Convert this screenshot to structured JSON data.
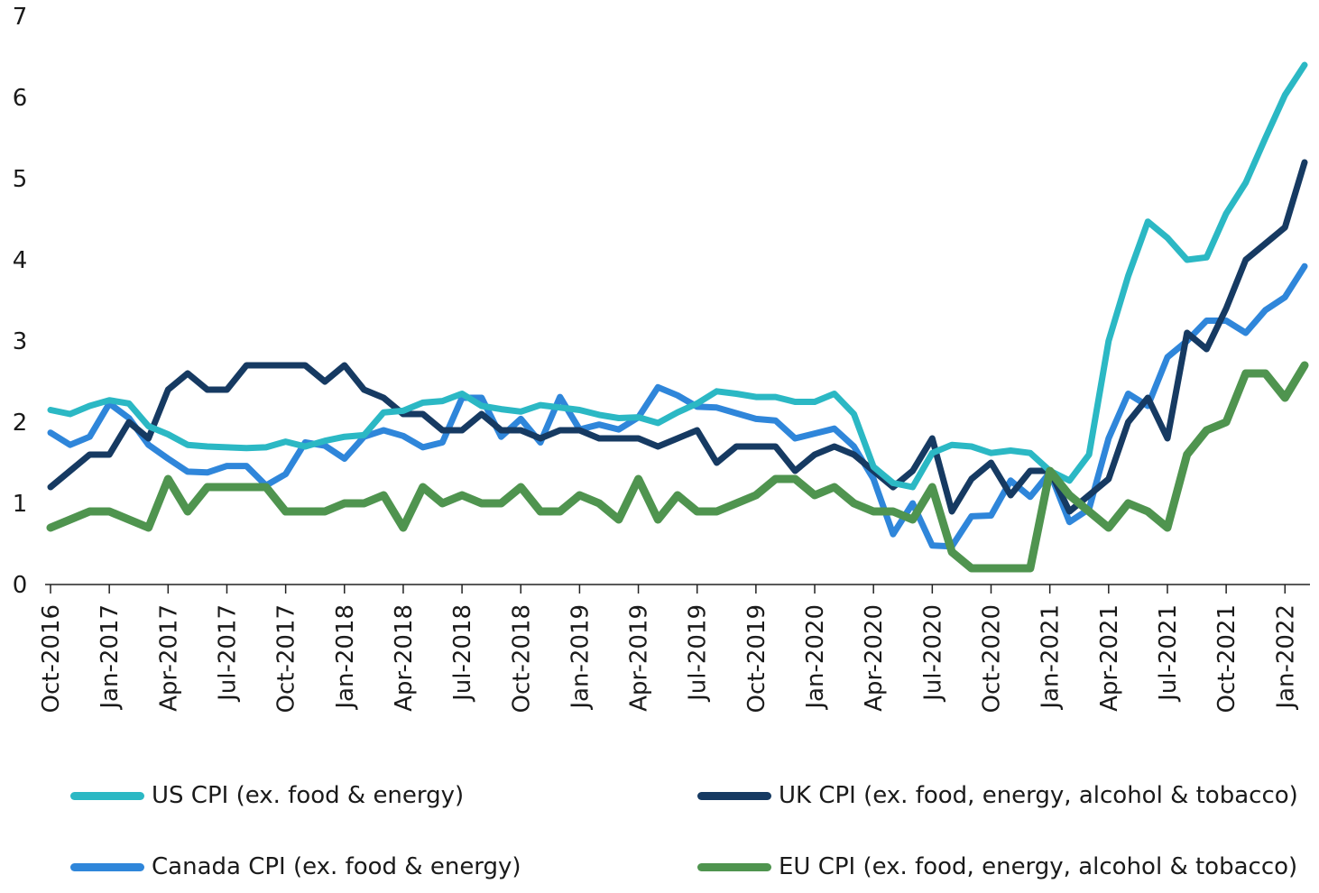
{
  "chart_data": {
    "type": "line",
    "title": "",
    "xlabel": "",
    "ylabel": "",
    "ylim": [
      0,
      7
    ],
    "yticks": [
      "0",
      "1",
      "2",
      "3",
      "4",
      "5",
      "6",
      "7"
    ],
    "grid": false,
    "legend_position": "bottom",
    "xtick_labels": [
      "Oct-2016",
      "Jan-2017",
      "Apr-2017",
      "Jul-2017",
      "Oct-2017",
      "Jan-2018",
      "Apr-2018",
      "Jul-2018",
      "Oct-2018",
      "Jan-2019",
      "Apr-2019",
      "Jul-2019",
      "Oct-2019",
      "Jan-2020",
      "Apr-2020",
      "Jul-2020",
      "Oct-2020",
      "Jan-2021",
      "Apr-2021",
      "Jul-2021",
      "Oct-2021",
      "Jan-2022"
    ],
    "x_start": "Oct-2016",
    "x_end": "Mar-2022",
    "series": [
      {
        "name": "US CPI (ex. food & energy)",
        "color": "#2bb8c4",
        "values": [
          2.15,
          2.1,
          2.2,
          2.27,
          2.23,
          1.95,
          1.85,
          1.72,
          1.7,
          1.69,
          1.68,
          1.69,
          1.76,
          1.7,
          1.77,
          1.82,
          1.84,
          2.12,
          2.14,
          2.24,
          2.26,
          2.35,
          2.2,
          2.16,
          2.13,
          2.21,
          2.18,
          2.15,
          2.09,
          2.05,
          2.06,
          1.99,
          2.12,
          2.23,
          2.38,
          2.35,
          2.31,
          2.31,
          2.25,
          2.25,
          2.35,
          2.1,
          1.45,
          1.25,
          1.2,
          1.62,
          1.72,
          1.7,
          1.62,
          1.65,
          1.62,
          1.4,
          1.28,
          1.6,
          3.0,
          3.8,
          4.47,
          4.27,
          4.0,
          4.03,
          4.57,
          4.95,
          5.5,
          6.03,
          6.4
        ]
      },
      {
        "name": "UK CPI (ex. food, energy, alcohol & tobacco)",
        "color": "#163a62",
        "values": [
          1.2,
          1.4,
          1.6,
          1.6,
          2.0,
          1.8,
          2.4,
          2.6,
          2.4,
          2.4,
          2.7,
          2.7,
          2.7,
          2.7,
          2.5,
          2.7,
          2.4,
          2.3,
          2.1,
          2.1,
          1.9,
          1.9,
          2.1,
          1.9,
          1.9,
          1.8,
          1.9,
          1.9,
          1.8,
          1.8,
          1.8,
          1.7,
          1.8,
          1.9,
          1.5,
          1.7,
          1.7,
          1.7,
          1.4,
          1.6,
          1.7,
          1.6,
          1.4,
          1.2,
          1.4,
          1.8,
          0.9,
          1.3,
          1.5,
          1.1,
          1.4,
          1.4,
          0.9,
          1.1,
          1.3,
          2.0,
          2.3,
          1.8,
          3.1,
          2.9,
          3.4,
          4.0,
          4.2,
          4.4,
          5.2
        ]
      },
      {
        "name": "Canada CPI (ex. food & energy)",
        "color": "#2f86da",
        "values": [
          1.87,
          1.72,
          1.82,
          2.23,
          2.05,
          1.72,
          1.55,
          1.39,
          1.38,
          1.46,
          1.46,
          1.22,
          1.36,
          1.75,
          1.71,
          1.55,
          1.82,
          1.9,
          1.83,
          1.69,
          1.75,
          2.3,
          2.3,
          1.82,
          2.04,
          1.75,
          2.31,
          1.91,
          1.97,
          1.91,
          2.06,
          2.43,
          2.33,
          2.19,
          2.18,
          2.11,
          2.04,
          2.02,
          1.8,
          1.86,
          1.92,
          1.7,
          1.3,
          0.62,
          1.0,
          0.48,
          0.47,
          0.84,
          0.85,
          1.28,
          1.08,
          1.38,
          0.77,
          0.93,
          1.8,
          2.35,
          2.2,
          2.8,
          3.0,
          3.25,
          3.25,
          3.1,
          3.38,
          3.54,
          3.92
        ]
      },
      {
        "name": "EU CPI (ex. food, energy, alcohol & tobacco)",
        "color": "#4f944f",
        "values": [
          0.7,
          0.8,
          0.9,
          0.9,
          0.8,
          0.7,
          1.3,
          0.9,
          1.2,
          1.2,
          1.2,
          1.2,
          0.9,
          0.9,
          0.9,
          1.0,
          1.0,
          1.1,
          0.7,
          1.2,
          1.0,
          1.1,
          1.0,
          1.0,
          1.2,
          0.9,
          0.9,
          1.1,
          1.0,
          0.8,
          1.3,
          0.8,
          1.1,
          0.9,
          0.9,
          1.0,
          1.1,
          1.3,
          1.3,
          1.1,
          1.2,
          1.0,
          0.9,
          0.9,
          0.8,
          1.2,
          0.4,
          0.2,
          0.2,
          0.2,
          0.2,
          1.4,
          1.1,
          0.9,
          0.7,
          1.0,
          0.9,
          0.7,
          1.6,
          1.9,
          2.0,
          2.6,
          2.6,
          2.3,
          2.7
        ]
      }
    ]
  },
  "legend": {
    "us": "US CPI (ex. food & energy)",
    "uk": "UK CPI (ex. food, energy, alcohol & tobacco)",
    "canada": "Canada CPI (ex. food & energy)",
    "eu": "EU CPI (ex. food, energy, alcohol & tobacco)"
  },
  "colors": {
    "us": "#2bb8c4",
    "uk": "#163a62",
    "canada": "#2f86da",
    "eu": "#4f944f",
    "axis": "#222222",
    "text": "#1a1a1a"
  }
}
